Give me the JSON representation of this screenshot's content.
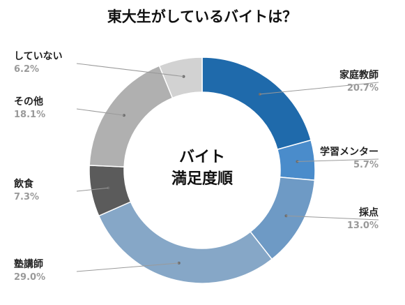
{
  "chart_data": {
    "type": "pie",
    "title": "東大生がしているバイトは？",
    "center_label": [
      "バイト",
      "満足度順"
    ],
    "slices": [
      {
        "label": "家庭教師",
        "value": 20.7,
        "display": "20.7%",
        "color": "#1f6aab"
      },
      {
        "label": "学習メンター",
        "value": 5.7,
        "display": "5.7%",
        "color": "#4a8ccb"
      },
      {
        "label": "採点",
        "value": 13.0,
        "display": "13.0%",
        "color": "#6e9ac5"
      },
      {
        "label": "塾講師",
        "value": 29.0,
        "display": "29.0%",
        "color": "#86a7c7"
      },
      {
        "label": "飲食",
        "value": 7.3,
        "display": "7.3%",
        "color": "#5b5b5b"
      },
      {
        "label": "その他",
        "value": 18.1,
        "display": "18.1%",
        "color": "#b0b0b0"
      },
      {
        "label": "していない",
        "value": 6.2,
        "display": "6.2%",
        "color": "#d2d2d2"
      }
    ],
    "legend": "none"
  }
}
